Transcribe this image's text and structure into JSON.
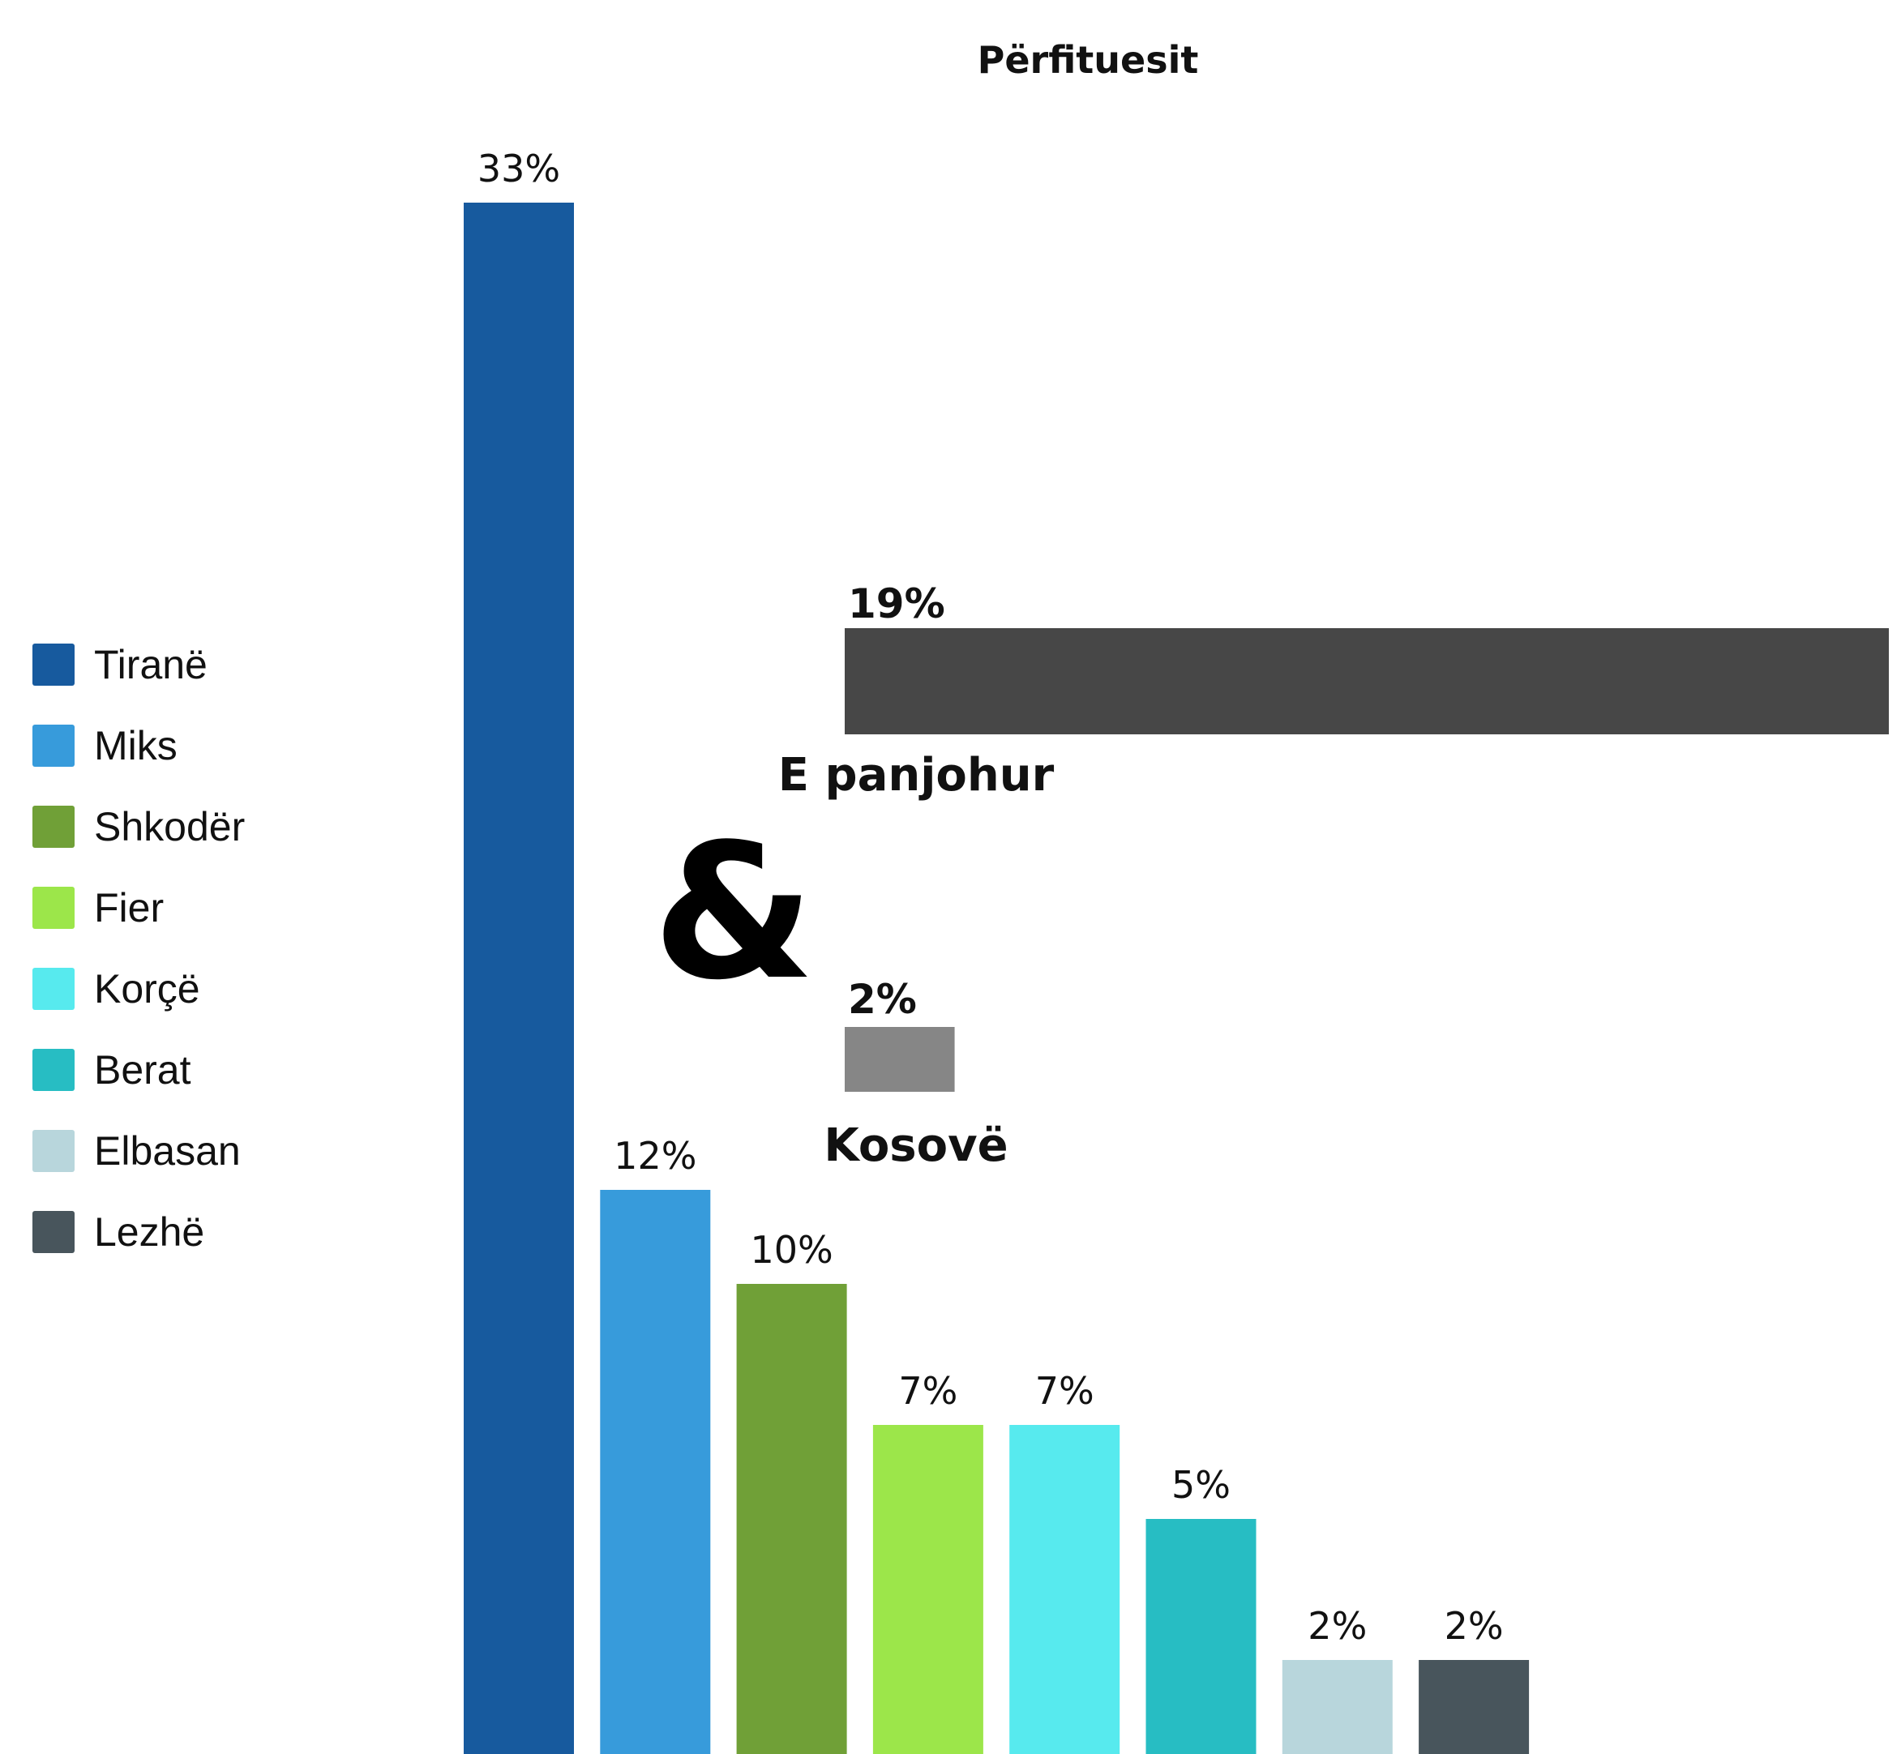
{
  "chart_data": {
    "type": "bar",
    "title": "Përfituesit",
    "categories": [
      "Tiranë",
      "Miks",
      "Shkodër",
      "Fier",
      "Korçë",
      "Berat",
      "Elbasan",
      "Lezhë"
    ],
    "values": [
      33,
      12,
      10,
      7,
      7,
      5,
      2,
      2
    ],
    "value_labels": [
      "33%",
      "12%",
      "10%",
      "7%",
      "7%",
      "5%",
      "2%",
      "2%"
    ],
    "colors": [
      "#175a9e",
      "#379bdb",
      "#70a037",
      "#9ce64a",
      "#57eaee",
      "#27bdc3",
      "#b8d6dc",
      "#48555c"
    ],
    "unit": "%",
    "legend_position": "left",
    "grid": false,
    "extra_series": [
      {
        "name": "E panjohur",
        "value": 19,
        "label": "19%",
        "color": "#474747"
      },
      {
        "name": "Kosovë",
        "value": 2,
        "label": "2%",
        "color": "#868686"
      }
    ],
    "separator_symbol": "&"
  }
}
